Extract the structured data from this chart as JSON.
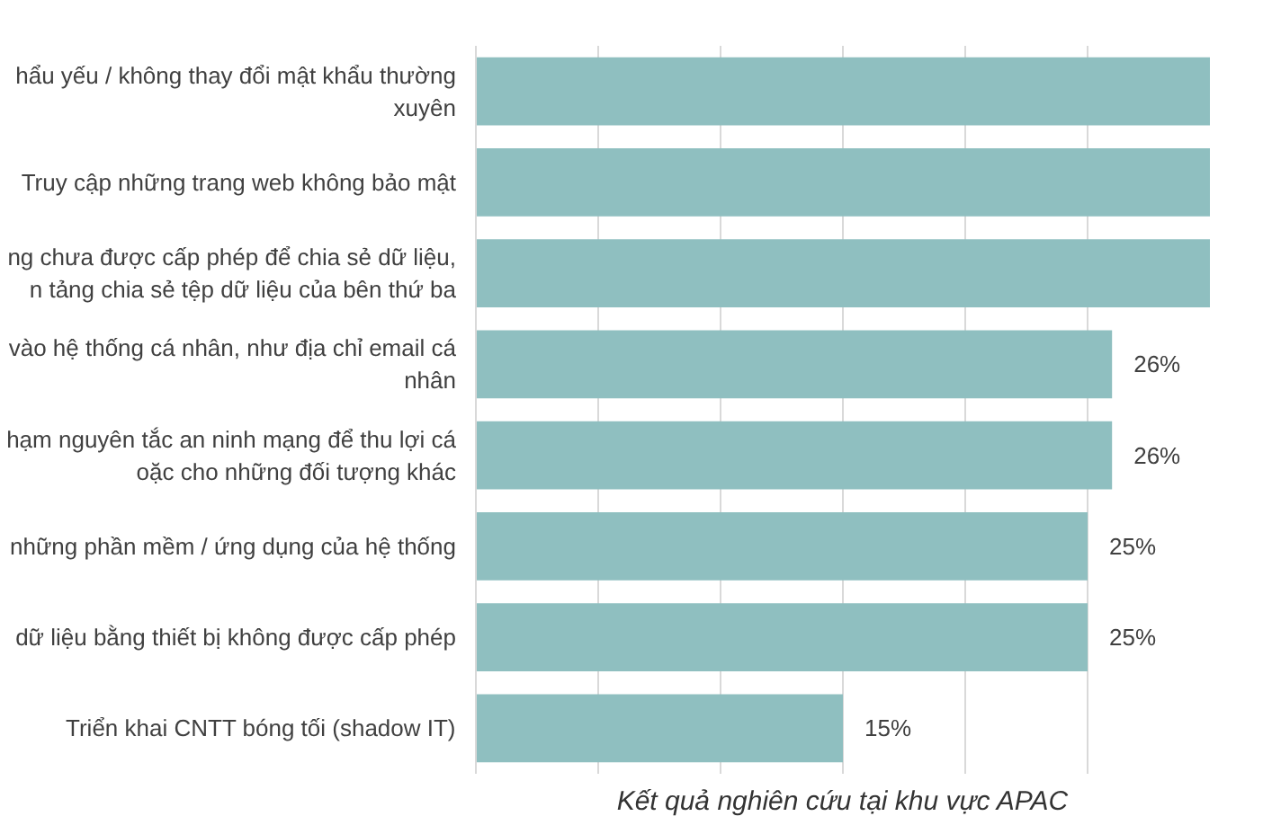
{
  "chart_data": {
    "type": "bar",
    "orientation": "horizontal",
    "categories": [
      "hẩu yếu / không thay đổi mật khẩu thường\nxuyên",
      "Truy cập những trang web không bảo mật",
      "ng chưa được cấp phép để chia sẻ dữ liệu,\nn tảng chia sẻ tệp dữ liệu của bên thứ ba",
      "vào hệ thống cá nhân, như địa chỉ email cá\nnhân",
      "hạm nguyên tắc an ninh mạng để thu lợi cá\noặc cho những đối tượng khác",
      "những phần mềm / ứng dụng của hệ thống",
      "dữ liệu bằng thiết bị không được cấp phép",
      "Triển khai CNTT bóng tối (shadow IT)"
    ],
    "values": [
      30,
      30,
      30,
      26,
      26,
      25,
      25,
      15
    ],
    "value_labels": [
      null,
      null,
      null,
      "26%",
      "26%",
      "25%",
      "25%",
      "15%"
    ],
    "color": "#8fbfc0",
    "xlim": [
      0,
      30
    ],
    "xticks": [
      {
        "value": 0,
        "label": null
      },
      {
        "value": 5,
        "label": null
      },
      {
        "value": 10,
        "label": null
      },
      {
        "value": 15,
        "label": null
      },
      {
        "value": 20,
        "label": null
      },
      {
        "value": 25,
        "label": null
      }
    ],
    "grid": "x",
    "tick_labels": "y",
    "annotations": [
      "Kết quả nghiên cứu tại khu vực APAC"
    ]
  }
}
